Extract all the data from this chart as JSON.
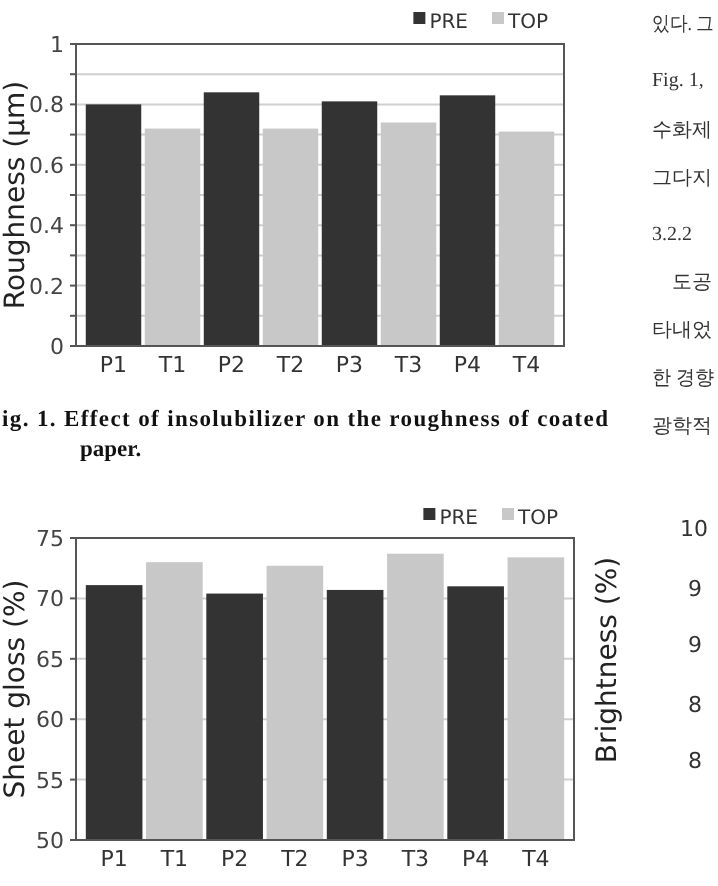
{
  "chart_data": [
    {
      "type": "bar",
      "title": "ig. 1. Effect of insolubilizer on the roughness of coated paper.",
      "ylabel": "Roughness (μm)",
      "categories": [
        "P1",
        "T1",
        "P2",
        "T2",
        "P3",
        "T3",
        "P4",
        "T4"
      ],
      "series": [
        {
          "name": "PRE",
          "color": "#333333",
          "values": [
            0.8,
            null,
            0.84,
            null,
            0.81,
            null,
            0.83,
            null
          ]
        },
        {
          "name": "TOP",
          "color": "#c8c8c8",
          "values": [
            null,
            0.72,
            null,
            0.72,
            null,
            0.74,
            null,
            0.71
          ]
        }
      ],
      "ylim": [
        0,
        1
      ],
      "yticks": [
        0,
        {
          "value": 0.1,
          "label": null
        },
        0.2,
        {
          "value": 0.3,
          "label": null
        },
        0.4,
        {
          "value": 0.5,
          "label": null
        },
        0.6,
        {
          "value": 0.7,
          "label": null
        },
        0.8,
        {
          "value": 0.9,
          "label": null
        },
        1
      ],
      "grid": "y",
      "legend": "top right"
    },
    {
      "type": "bar",
      "ylabel": "Sheet gloss (%)",
      "categories": [
        "P1",
        "T1",
        "P2",
        "T2",
        "P3",
        "T3",
        "P4",
        "T4"
      ],
      "series": [
        {
          "name": "PRE",
          "color": "#333333",
          "values": [
            71.1,
            null,
            70.4,
            null,
            70.7,
            null,
            71.0,
            null
          ]
        },
        {
          "name": "TOP",
          "color": "#c8c8c8",
          "values": [
            null,
            73.0,
            null,
            72.7,
            null,
            73.7,
            null,
            73.4
          ]
        }
      ],
      "ylim": [
        50,
        75
      ],
      "yticks": [
        50,
        55,
        60,
        65,
        70,
        75
      ],
      "grid": "y",
      "legend": "top right"
    },
    {
      "type": "other",
      "annotations": [
        "있다. 그",
        "Fig. 1,",
        "수화제",
        "그다지",
        "3.2.2",
        "도공",
        "타내었",
        "한 경향",
        "광학적",
        "Brightness (%)",
        "10",
        "9",
        "9",
        "8",
        "8"
      ]
    }
  ]
}
